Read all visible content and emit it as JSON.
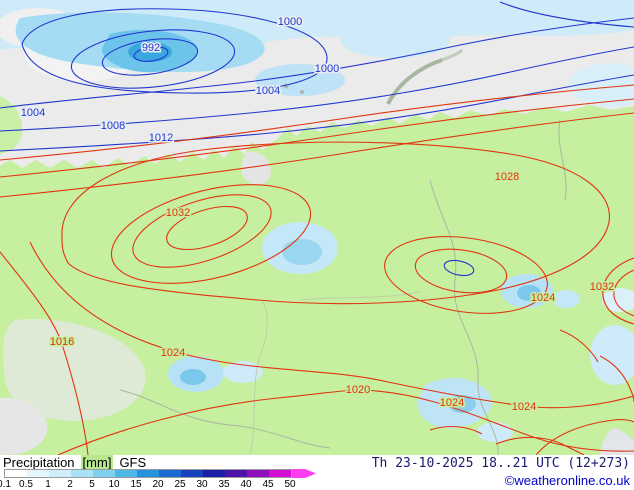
{
  "map": {
    "isobar_labels": {
      "b992": "992",
      "b1000_top": "1000",
      "b1000_right": "1000",
      "b1004_mid": "1004",
      "b1004_left": "1004",
      "b1008": "1008",
      "b1012": "1012",
      "r1016": "1016",
      "r1020": "1020",
      "r1024_sw": "1024",
      "r1024_s": "1024",
      "r1024_se": "1024",
      "r1024_e": "1024",
      "r1028": "1028",
      "r1032_center": "1032",
      "r1032_east": "1032"
    },
    "colors": {
      "land": "#c6ef9f",
      "sea": "#ebebeb",
      "precip_light": "#cfeaf8",
      "precip_medium": "#a5dcf3",
      "precip_heavy": "#6cc4ea",
      "precip_core": "#3aa8e0",
      "isobar_low": "#2138cf",
      "isobar_high": "#e2340e"
    }
  },
  "legend": {
    "title": "Precipitation",
    "unit": "[mm]",
    "model": "GFS",
    "scale_values": [
      "0.1",
      "0.5",
      "1",
      "2",
      "5",
      "10",
      "15",
      "20",
      "25",
      "30",
      "35",
      "40",
      "45",
      "50"
    ],
    "scale_colors": [
      "#ffffff",
      "#e6f6fd",
      "#cdeefa",
      "#abe1f6",
      "#7fd0ef",
      "#4fb7e8",
      "#2492dd",
      "#1b6ad0",
      "#1a41bd",
      "#1c1ea8",
      "#4c14a8",
      "#8e10bc",
      "#d40ed4",
      "#ff3df0"
    ]
  },
  "footer": {
    "datetime": "Th 23-10-2025 18..21 UTC (12+273)",
    "copyright": "©weatheronline.co.uk"
  }
}
